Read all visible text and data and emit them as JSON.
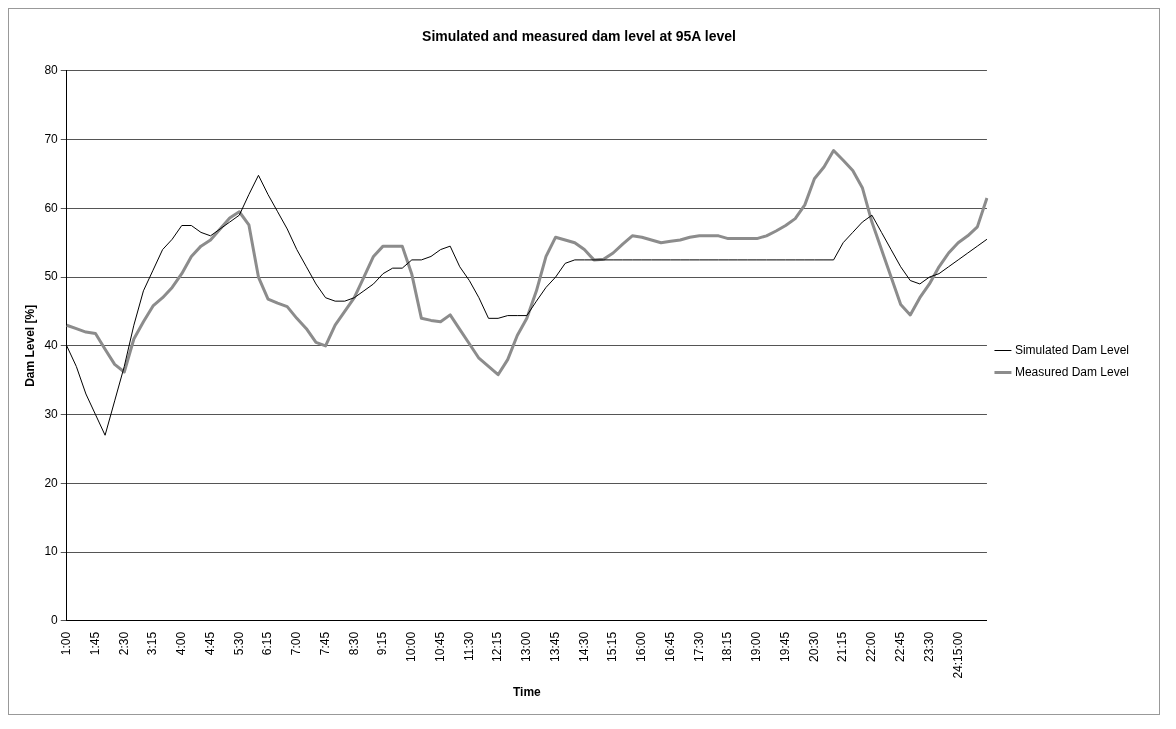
{
  "chart_data": {
    "type": "line",
    "title": "Simulated and measured dam level at 95A level",
    "xlabel": "Time",
    "ylabel": "Dam Level [%]",
    "categories": [
      "1:00",
      null,
      null,
      "1:45",
      null,
      null,
      "2:30",
      null,
      null,
      "3:15",
      null,
      null,
      "4:00",
      null,
      null,
      "4:45",
      null,
      null,
      "5:30",
      null,
      null,
      "6:15",
      null,
      null,
      "7:00",
      null,
      null,
      "7:45",
      null,
      null,
      "8:30",
      null,
      null,
      "9:15",
      null,
      null,
      "10:00",
      null,
      null,
      "10:45",
      null,
      null,
      "11:30",
      null,
      null,
      "12:15",
      null,
      null,
      "13:00",
      null,
      null,
      "13:45",
      null,
      null,
      "14:30",
      null,
      null,
      "15:15",
      null,
      null,
      "16:00",
      null,
      null,
      "16:45",
      null,
      null,
      "17:30",
      null,
      null,
      "18:15",
      null,
      null,
      "19:00",
      null,
      null,
      "19:45",
      null,
      null,
      "20:30",
      null,
      null,
      "21:15",
      null,
      null,
      "22:00",
      null,
      null,
      "22:45",
      null,
      null,
      "23:30",
      null,
      null,
      "24:15:00",
      null,
      null,
      null
    ],
    "series": [
      {
        "name": "Simulated Dam Level",
        "color": "#000000",
        "values": [
          40,
          37,
          33,
          30,
          27,
          32,
          37,
          43,
          48,
          51,
          54,
          55.5,
          57.5,
          57.5,
          56.5,
          56,
          57,
          58,
          59,
          62,
          64.8,
          62,
          59.5,
          57,
          54,
          51.5,
          49,
          47,
          46.5,
          46.5,
          47,
          48,
          49,
          50.5,
          51.3,
          51.3,
          52.5,
          52.5,
          53,
          54,
          54.5,
          51.5,
          49.5,
          47,
          44,
          44,
          44.4,
          44.4,
          44.4,
          46.5,
          48.5,
          50,
          52,
          52.5,
          52.5,
          52.5,
          52.5,
          52.5,
          52.5,
          52.5,
          52.5,
          52.5,
          52.5,
          52.5,
          52.5,
          52.5,
          52.5,
          52.5,
          52.5,
          52.5,
          52.5,
          52.5,
          52.5,
          52.5,
          52.5,
          52.5,
          52.5,
          52.5,
          52.5,
          52.5,
          52.5,
          55,
          56.5,
          58,
          59,
          56.5,
          54,
          51.5,
          49.5,
          49,
          50,
          50.5,
          51.5,
          52.5,
          53.5,
          54.5,
          55.5
        ]
      },
      {
        "name": "Measured Dam Level",
        "color": "#8c8c8c",
        "values": [
          43,
          42.5,
          42,
          41.8,
          39.5,
          37.3,
          36.2,
          41,
          43.5,
          45.8,
          47,
          48.5,
          50.5,
          53,
          54.5,
          55.4,
          57,
          58.6,
          59.5,
          57.6,
          50,
          46.8,
          46.2,
          45.7,
          44,
          42.5,
          40.5,
          40,
          43,
          45,
          47,
          50,
          53,
          54.5,
          54.5,
          54.5,
          50.4,
          44,
          43.7,
          43.5,
          44.5,
          42.4,
          40.3,
          38.2,
          37,
          35.8,
          38,
          41.5,
          44,
          48,
          53,
          55.8,
          55.4,
          55,
          54,
          52.5,
          52.6,
          53.5,
          54.8,
          56,
          55.8,
          55.4,
          55,
          55.2,
          55.4,
          55.8,
          56,
          56,
          56,
          55.6,
          55.6,
          55.6,
          55.6,
          56,
          56.7,
          57.5,
          58.5,
          60.5,
          64.3,
          66,
          68.4,
          67,
          65.5,
          63,
          58,
          54,
          50,
          46,
          44.5,
          47,
          49,
          51.5,
          53.5,
          55,
          56,
          57.3,
          61.5
        ]
      }
    ],
    "ylim": [
      0,
      80
    ],
    "yticks": [
      0,
      10,
      20,
      30,
      40,
      50,
      60,
      70,
      80
    ],
    "grid": "y",
    "legend": "right",
    "marker": "none"
  }
}
